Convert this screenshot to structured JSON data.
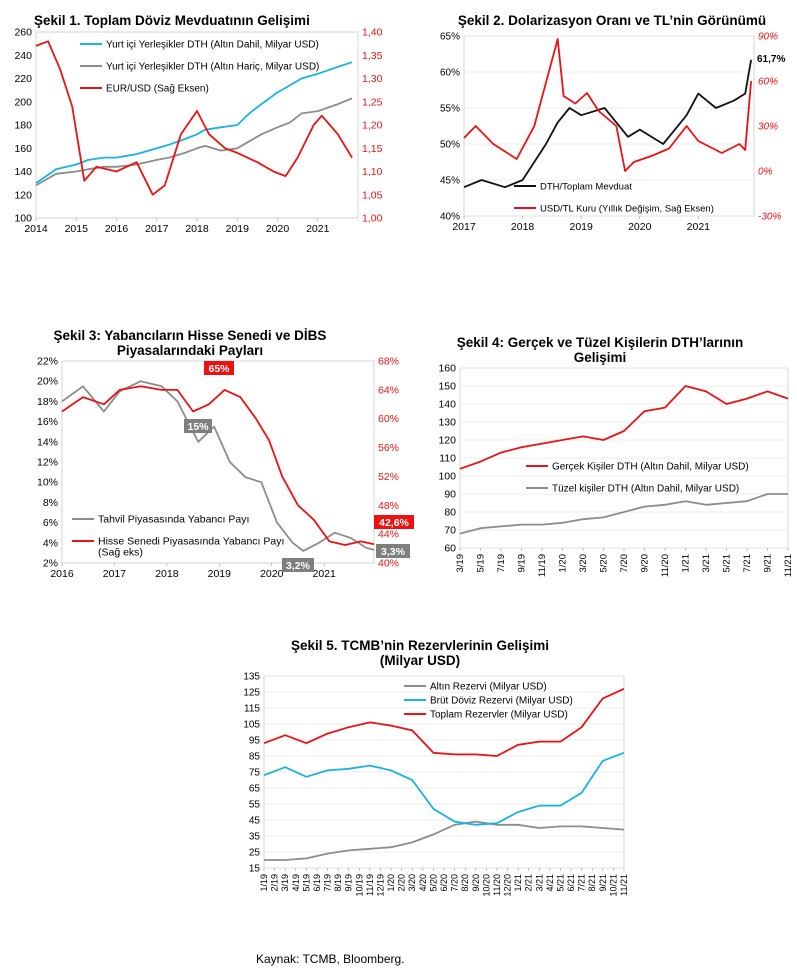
{
  "colors": {
    "red": "#ee1111",
    "blue": "#19b2e6",
    "gray": "#8c8c8c",
    "black": "#111111",
    "grid": "#e6e6e6"
  },
  "source": "Kaynak: TCMB, Bloomberg.",
  "chart_data": [
    {
      "id": "c1",
      "type": "line",
      "title": "Şekil 1. Toplam Döviz Mevduatının Gelişimi",
      "x_ticks": [
        "2014",
        "2015",
        "2016",
        "2017",
        "2018",
        "2019",
        "2020",
        "2021"
      ],
      "x_range": [
        2014,
        2022
      ],
      "y_left": {
        "range": [
          100,
          260
        ],
        "ticks": [
          "100",
          "120",
          "140",
          "160",
          "180",
          "200",
          "220",
          "240",
          "260"
        ]
      },
      "y_right": {
        "range": [
          1.0,
          1.4
        ],
        "ticks": [
          "1,00",
          "1,05",
          "1,10",
          "1,15",
          "1,20",
          "1,25",
          "1,30",
          "1,35",
          "1,40"
        ]
      },
      "series": [
        {
          "name": "Yurt içi Yerleşikler DTH (Altın Dahil, Milyar USD)",
          "color": "blue",
          "axis": "left",
          "x": [
            2014,
            2014.5,
            2015,
            2015.3,
            2015.7,
            2016,
            2016.5,
            2017,
            2017.3,
            2017.7,
            2018,
            2018.2,
            2018.6,
            2019,
            2019.3,
            2019.6,
            2020,
            2020.3,
            2020.6,
            2021,
            2021.5,
            2021.85
          ],
          "y": [
            130,
            142,
            146,
            150,
            152,
            152,
            155,
            160,
            163,
            168,
            172,
            176,
            178,
            180,
            190,
            198,
            208,
            214,
            220,
            224,
            230,
            234
          ]
        },
        {
          "name": "Yurt içi Yerleşikler DTH (Altın Hariç, Milyar USD)",
          "color": "gray",
          "axis": "left",
          "x": [
            2014,
            2014.5,
            2015,
            2015.3,
            2015.7,
            2016,
            2016.5,
            2017,
            2017.3,
            2017.7,
            2018,
            2018.2,
            2018.6,
            2019,
            2019.3,
            2019.6,
            2020,
            2020.3,
            2020.6,
            2021,
            2021.5,
            2021.85
          ],
          "y": [
            128,
            138,
            140,
            142,
            144,
            144,
            146,
            150,
            152,
            156,
            160,
            162,
            158,
            160,
            166,
            172,
            178,
            182,
            190,
            192,
            198,
            203
          ]
        },
        {
          "name": "EUR/USD (Sağ Eksen)",
          "color": "red",
          "axis": "right",
          "x": [
            2014,
            2014.3,
            2014.6,
            2014.9,
            2015.2,
            2015.5,
            2016,
            2016.5,
            2016.9,
            2017.2,
            2017.6,
            2018,
            2018.3,
            2018.7,
            2019,
            2019.5,
            2019.9,
            2020.2,
            2020.5,
            2020.9,
            2021.1,
            2021.5,
            2021.85
          ],
          "y": [
            1.37,
            1.38,
            1.32,
            1.24,
            1.08,
            1.11,
            1.1,
            1.12,
            1.05,
            1.07,
            1.18,
            1.23,
            1.18,
            1.15,
            1.14,
            1.12,
            1.1,
            1.09,
            1.13,
            1.2,
            1.22,
            1.18,
            1.13
          ]
        }
      ]
    },
    {
      "id": "c2",
      "type": "line",
      "title": "Şekil 2. Dolarizasyon Oranı ve TL’nin Görünümü",
      "x_ticks": [
        "2017",
        "2018",
        "2019",
        "2020",
        "2021"
      ],
      "x_range": [
        2017,
        2021.95
      ],
      "y_left": {
        "range": [
          40,
          65
        ],
        "ticks": [
          "40%",
          "45%",
          "50%",
          "55%",
          "60%",
          "65%"
        ]
      },
      "y_right": {
        "range": [
          -30,
          90
        ],
        "ticks": [
          "-30%",
          "0%",
          "30%",
          "60%",
          "90%"
        ]
      },
      "annotation": "61,7%",
      "series": [
        {
          "name": "DTH/Toplam Mevduat",
          "color": "black",
          "axis": "left",
          "x": [
            2017,
            2017.3,
            2017.7,
            2018,
            2018.4,
            2018.6,
            2018.8,
            2019,
            2019.4,
            2019.8,
            2020,
            2020.4,
            2020.8,
            2021,
            2021.3,
            2021.6,
            2021.8,
            2021.9
          ],
          "y": [
            44,
            45,
            44,
            45,
            50,
            53,
            55,
            54,
            55,
            51,
            52,
            50,
            54,
            57,
            55,
            56,
            57,
            61.7
          ]
        },
        {
          "name": "USD/TL Kuru (Yıllık Değişim, Sağ Eksen)",
          "color": "red",
          "axis": "right",
          "x": [
            2017,
            2017.2,
            2017.5,
            2017.9,
            2018.2,
            2018.6,
            2018.7,
            2018.9,
            2019.1,
            2019.3,
            2019.6,
            2019.75,
            2019.9,
            2020.2,
            2020.5,
            2020.8,
            2021,
            2021.4,
            2021.7,
            2021.8,
            2021.9
          ],
          "y": [
            22,
            30,
            18,
            8,
            30,
            88,
            50,
            45,
            52,
            40,
            30,
            0,
            6,
            10,
            15,
            30,
            20,
            12,
            18,
            14,
            60
          ]
        }
      ]
    },
    {
      "id": "c3",
      "type": "line",
      "title": "Şekil 3: Yabancıların Hisse Senedi ve DİBS Piyasalarındaki Payları",
      "x_ticks": [
        "2016",
        "2017",
        "2018",
        "2019",
        "2020",
        "2021"
      ],
      "x_range": [
        2016,
        2021.95
      ],
      "y_left": {
        "range": [
          2,
          22
        ],
        "ticks": [
          "2%",
          "4%",
          "6%",
          "8%",
          "10%",
          "12%",
          "14%",
          "16%",
          "18%",
          "20%",
          "22%"
        ]
      },
      "y_right": {
        "range": [
          40,
          68
        ],
        "ticks": [
          "40%",
          "44%",
          "48%",
          "52%",
          "56%",
          "60%",
          "64%",
          "68%"
        ]
      },
      "labels": {
        "peak": "65%",
        "bond_mid": "15%",
        "bond_low": "3,2%",
        "equity_last": "42,6%",
        "bond_last": "3,3%"
      },
      "series": [
        {
          "name": "Tahvil Piyasasında Yabancı Payı",
          "color": "gray",
          "axis": "left",
          "x": [
            2016,
            2016.4,
            2016.8,
            2017.1,
            2017.5,
            2017.9,
            2018.2,
            2018.6,
            2018.9,
            2019.2,
            2019.5,
            2019.8,
            2020.1,
            2020.4,
            2020.6,
            2020.9,
            2021.2,
            2021.5,
            2021.8,
            2021.95
          ],
          "y": [
            18,
            19.5,
            17,
            19,
            20,
            19.5,
            18,
            14,
            15.5,
            12,
            10.5,
            10,
            6,
            4,
            3.2,
            4,
            5,
            4.5,
            3.5,
            3.3
          ]
        },
        {
          "name": "Hisse Senedi Piyasasında Yabancı Payı (Sağ eks)",
          "color": "red",
          "axis": "right",
          "x": [
            2016,
            2016.4,
            2016.8,
            2017.1,
            2017.5,
            2017.9,
            2018.2,
            2018.5,
            2018.8,
            2019.1,
            2019.4,
            2019.7,
            2019.95,
            2020.2,
            2020.5,
            2020.8,
            2021.1,
            2021.4,
            2021.7,
            2021.95
          ],
          "y": [
            61,
            63,
            62,
            64,
            64.5,
            64,
            64,
            61,
            62,
            64,
            63,
            60,
            57,
            52,
            48,
            46,
            43,
            42.5,
            43,
            42.6
          ]
        }
      ]
    },
    {
      "id": "c4",
      "type": "line",
      "title": "Şekil 4: Gerçek ve Tüzel Kişilerin DTH’larının Gelişimi",
      "x_ticks": [
        "3/19",
        "5/19",
        "7/19",
        "9/19",
        "11/19",
        "1/20",
        "3/20",
        "5/20",
        "7/20",
        "9/20",
        "11/20",
        "1/21",
        "3/21",
        "5/21",
        "7/21",
        "9/21",
        "11/21"
      ],
      "y_left": {
        "range": [
          60,
          160
        ],
        "ticks": [
          "60",
          "70",
          "80",
          "90",
          "100",
          "110",
          "120",
          "130",
          "140",
          "150",
          "160"
        ]
      },
      "series": [
        {
          "name": "Gerçek Kişiler DTH (Altın Dahil, Milyar USD)",
          "color": "red",
          "x": [
            0,
            1,
            2,
            3,
            4,
            5,
            6,
            7,
            8,
            9,
            10,
            11,
            12,
            13,
            14,
            15,
            16
          ],
          "y": [
            104,
            108,
            113,
            116,
            118,
            120,
            122,
            120,
            125,
            136,
            138,
            150,
            147,
            140,
            143,
            147,
            143
          ]
        },
        {
          "name": "Tüzel kişiler DTH (Altın Dahil, Milyar USD)",
          "color": "gray",
          "x": [
            0,
            1,
            2,
            3,
            4,
            5,
            6,
            7,
            8,
            9,
            10,
            11,
            12,
            13,
            14,
            15,
            16
          ],
          "y": [
            68,
            71,
            72,
            73,
            73,
            74,
            76,
            77,
            80,
            83,
            84,
            86,
            84,
            85,
            86,
            90,
            90
          ]
        }
      ]
    },
    {
      "id": "c5",
      "type": "line",
      "title": "Şekil 5. TCMB’nin Rezervlerinin Gelişimi (Milyar USD)",
      "x_ticks": [
        "1/19",
        "2/19",
        "3/19",
        "4/19",
        "5/19",
        "6/19",
        "7/19",
        "8/19",
        "9/19",
        "10/19",
        "11/19",
        "12/19",
        "1/20",
        "2/20",
        "3/20",
        "4/20",
        "5/20",
        "6/20",
        "7/20",
        "8/20",
        "9/20",
        "10/20",
        "11/20",
        "12/20",
        "1/21",
        "2/21",
        "3/21",
        "4/21",
        "5/21",
        "6/21",
        "7/21",
        "8/21",
        "9/21",
        "10/21",
        "11/21"
      ],
      "y_left": {
        "range": [
          15,
          135
        ],
        "ticks": [
          "15",
          "25",
          "35",
          "45",
          "55",
          "65",
          "75",
          "85",
          "95",
          "105",
          "115",
          "125",
          "135"
        ]
      },
      "series": [
        {
          "name": "Altın Rezervi (Milyar USD)",
          "color": "gray",
          "x": [
            0,
            2,
            4,
            6,
            8,
            10,
            12,
            14,
            16,
            18,
            20,
            22,
            24,
            26,
            28,
            30,
            32,
            34
          ],
          "y": [
            20,
            20,
            21,
            24,
            26,
            27,
            28,
            31,
            36,
            42,
            44,
            42,
            42,
            40,
            41,
            41,
            40,
            39
          ]
        },
        {
          "name": "Brüt Döviz Rezervi (Milyar USD)",
          "color": "blue",
          "x": [
            0,
            2,
            4,
            6,
            8,
            10,
            12,
            14,
            16,
            18,
            20,
            22,
            24,
            26,
            28,
            30,
            32,
            34
          ],
          "y": [
            73,
            78,
            72,
            76,
            77,
            79,
            76,
            70,
            52,
            44,
            42,
            43,
            50,
            54,
            54,
            62,
            82,
            87
          ]
        },
        {
          "name": "Toplam Rezervler (Milyar USD)",
          "color": "red",
          "x": [
            0,
            2,
            4,
            6,
            8,
            10,
            12,
            14,
            16,
            18,
            20,
            22,
            24,
            26,
            28,
            30,
            32,
            34
          ],
          "y": [
            93,
            98,
            93,
            99,
            103,
            106,
            104,
            101,
            87,
            86,
            86,
            85,
            92,
            94,
            94,
            103,
            121,
            127
          ]
        }
      ]
    }
  ]
}
